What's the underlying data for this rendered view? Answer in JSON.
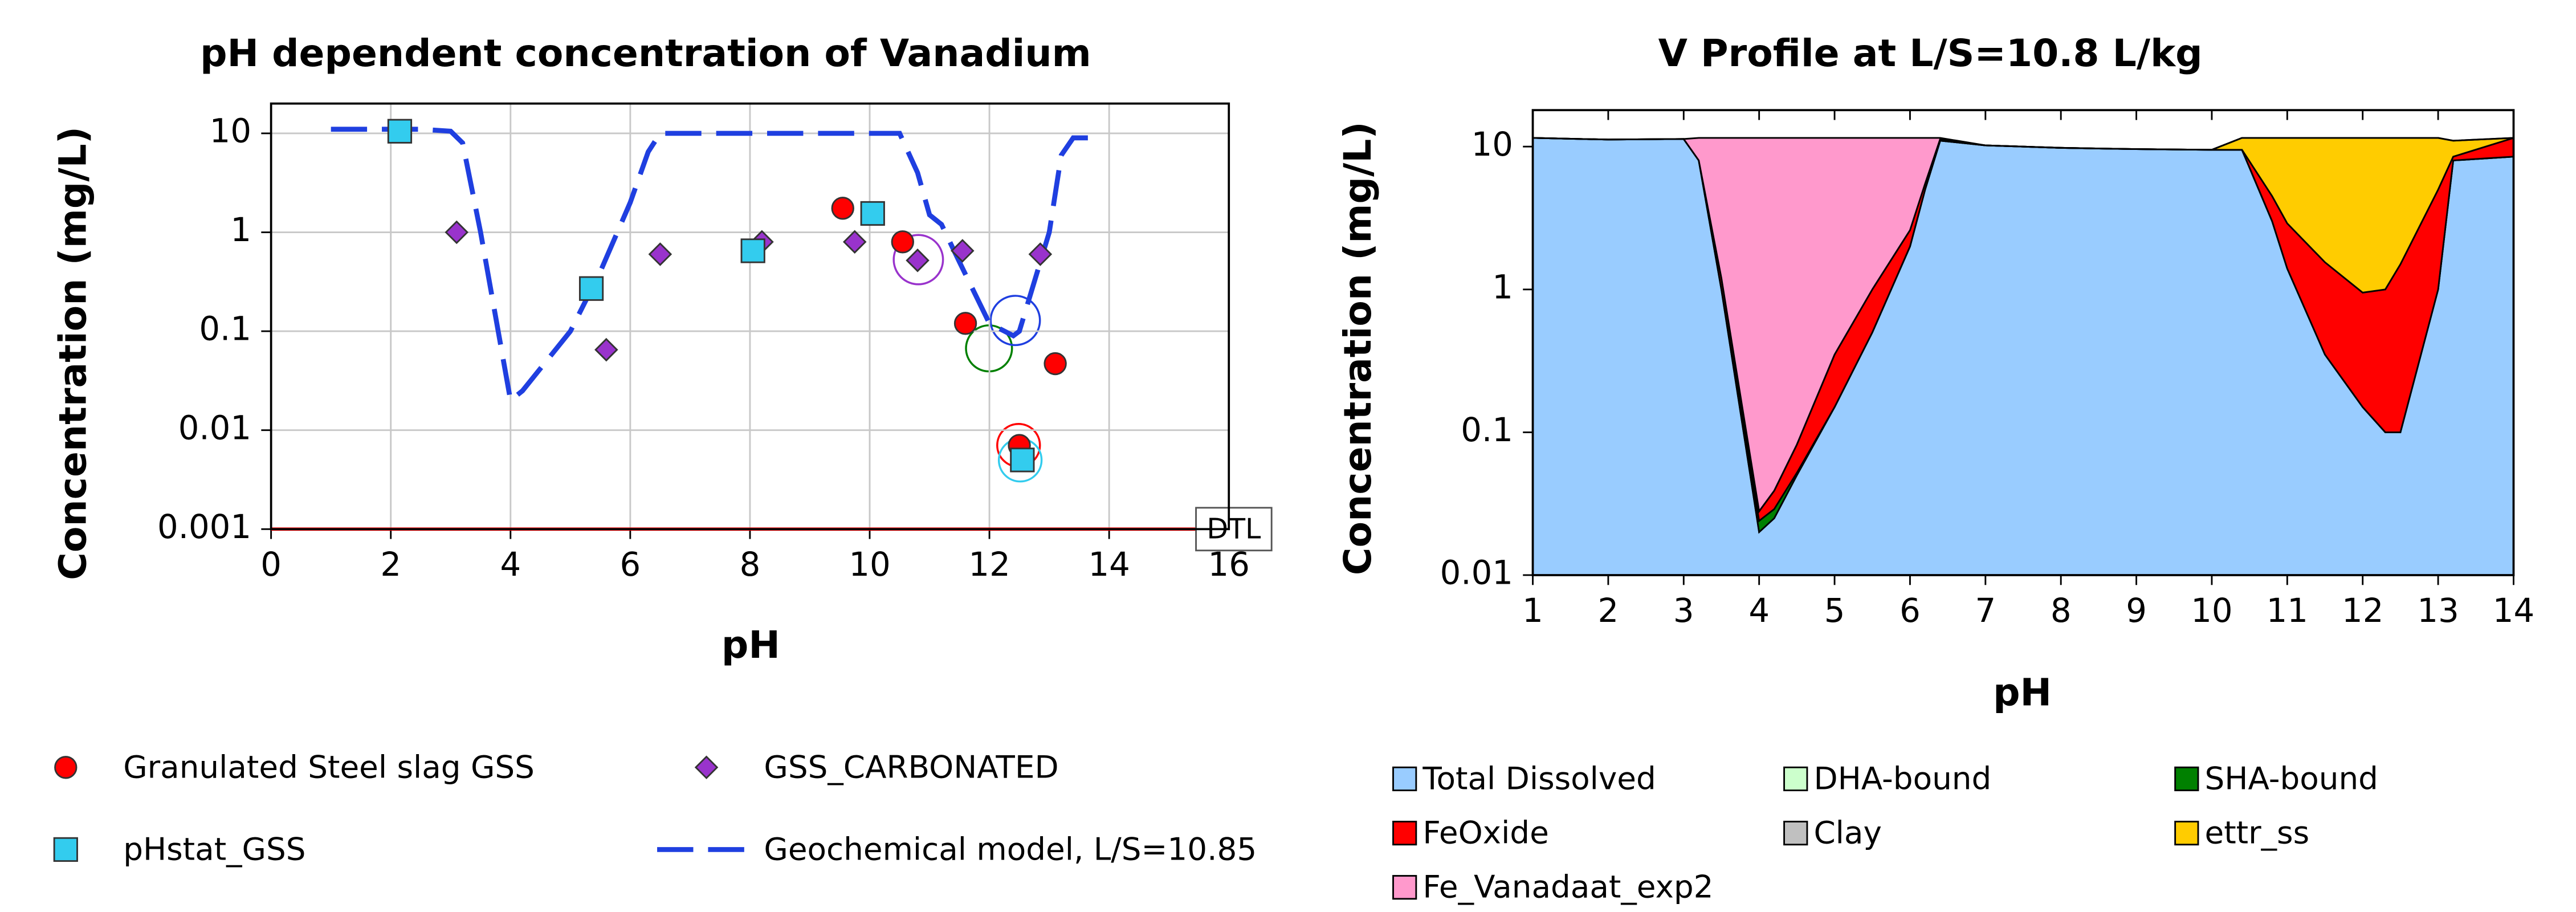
{
  "chart_data": [
    {
      "type": "scatter",
      "title": "pH dependent concentration of Vanadium",
      "x_label": "pH",
      "y_label": "Concentration (mg/L)",
      "xlim": [
        0,
        16
      ],
      "xticks": [
        0,
        2,
        4,
        6,
        8,
        10,
        12,
        14,
        16
      ],
      "ylim": [
        0.001,
        20
      ],
      "yticks": [
        10,
        1,
        0.1,
        0.01,
        0.001
      ],
      "log_y": true,
      "grid": true,
      "dtl": {
        "value": 0.001,
        "label": "DTL",
        "color": "#ff0000"
      },
      "series": [
        {
          "name": "Granulated Steel slag GSS",
          "kind": "marker",
          "marker": "circle",
          "color": "#ff0000",
          "x": [
            9.55,
            10.55,
            11.6,
            12.5,
            13.1
          ],
          "values": [
            1.75,
            0.8,
            0.12,
            0.007,
            0.047
          ]
        },
        {
          "name": "GSS_CARBONATED",
          "kind": "marker",
          "marker": "diamond",
          "color": "#9933cc",
          "x": [
            3.1,
            5.6,
            6.5,
            8.2,
            9.75,
            10.8,
            11.55,
            12.85
          ],
          "values": [
            1.0,
            0.065,
            0.6,
            0.8,
            0.8,
            0.52,
            0.65,
            0.6
          ]
        },
        {
          "name": "pHstat_GSS",
          "kind": "marker",
          "marker": "square",
          "color": "#33ccee",
          "x": [
            2.15,
            5.35,
            8.05,
            10.05,
            12.55
          ],
          "values": [
            10.5,
            0.27,
            0.65,
            1.55,
            0.005
          ]
        },
        {
          "name": "Geochemical model, L/S=10.85",
          "kind": "line",
          "style": "dashed",
          "color": "#1f3fe0",
          "x": [
            1,
            2.5,
            3,
            3.2,
            3.5,
            4,
            4.2,
            5,
            5.5,
            6,
            6.3,
            6.5,
            7,
            10.5,
            10.8,
            11,
            11.2,
            11.5,
            12,
            12.4,
            12.5,
            13,
            13.2,
            13.4,
            13.8
          ],
          "values": [
            11,
            11,
            10.5,
            8,
            1,
            0.02,
            0.025,
            0.1,
            0.4,
            2,
            6.5,
            10,
            10,
            10,
            4,
            1.5,
            1.2,
            0.5,
            0.12,
            0.09,
            0.1,
            1,
            6,
            9,
            9
          ]
        }
      ]
    },
    {
      "type": "area",
      "title": "V Profile at L/S=10.8 L/kg",
      "x_label": "pH",
      "y_label": "Concentration (mg/L)",
      "xlim": [
        1,
        14
      ],
      "xticks": [
        1,
        2,
        3,
        4,
        5,
        6,
        7,
        8,
        9,
        10,
        11,
        12,
        13,
        14
      ],
      "ylim": [
        0.01,
        18
      ],
      "yticks": [
        10,
        1,
        0.1,
        0.01
      ],
      "log_y": true,
      "grid": false,
      "x": [
        1,
        2,
        3,
        3.2,
        3.5,
        4,
        4.2,
        4.5,
        5,
        5.5,
        6,
        6.2,
        6.4,
        7,
        8,
        9,
        10,
        10.4,
        10.8,
        11,
        11.5,
        12,
        12.3,
        12.5,
        13,
        13.2,
        14
      ],
      "series": [
        {
          "name": "Total Dissolved",
          "color": "#99ccff",
          "values": [
            11.5,
            11.2,
            11.3,
            8,
            1,
            0.02,
            0.025,
            0.05,
            0.15,
            0.5,
            2,
            5,
            11,
            10.2,
            9.8,
            9.6,
            9.5,
            9.5,
            3,
            1.4,
            0.35,
            0.15,
            0.1,
            0.1,
            1,
            8,
            8.5
          ]
        },
        {
          "name": "DHA-bound",
          "color": "#ccffcc",
          "values": [
            0,
            0,
            0,
            0,
            0,
            0,
            0,
            0,
            0,
            0,
            0,
            0,
            0,
            0,
            0,
            0,
            0,
            0,
            0,
            0,
            0,
            0,
            0,
            0,
            0,
            0,
            0
          ]
        },
        {
          "name": "SHA-bound",
          "color": "#008000",
          "values": [
            0,
            0,
            0,
            0,
            0,
            0.004,
            0.004,
            0.002,
            0,
            0,
            0,
            0,
            0,
            0,
            0,
            0,
            0,
            0,
            0,
            0,
            0,
            0,
            0,
            0,
            0,
            0,
            0
          ]
        },
        {
          "name": "FeOxide",
          "color": "#ff0000",
          "values": [
            0,
            0,
            0,
            0,
            0.2,
            0.004,
            0.01,
            0.03,
            0.2,
            0.5,
            0.6,
            0.5,
            0.3,
            0,
            0,
            0,
            0,
            0,
            1.5,
            1.5,
            1.2,
            0.8,
            0.9,
            1.4,
            4,
            0.5,
            3
          ]
        },
        {
          "name": "Clay",
          "color": "#c0c0c0",
          "values": [
            0,
            0,
            0,
            0,
            0,
            0,
            0,
            0,
            0,
            0,
            0,
            0,
            0,
            0,
            0,
            0,
            0,
            0,
            0,
            0,
            0,
            0,
            0,
            0,
            0,
            0,
            0
          ]
        },
        {
          "name": "ettr_ss",
          "color": "#ffcc00",
          "values": [
            0,
            0,
            0,
            0,
            0,
            0,
            0,
            0,
            0,
            0,
            0,
            0,
            0,
            0,
            0,
            0,
            0,
            2,
            7,
            8.6,
            9.95,
            10.55,
            10.5,
            10,
            6.5,
            2.5,
            0
          ]
        },
        {
          "name": "Fe_Vanadaat_exp2",
          "color": "#ff99cc",
          "values": [
            0,
            0,
            0,
            3.5,
            10.3,
            11.47,
            11.46,
            11.42,
            11.15,
            10.5,
            8.9,
            6,
            0.2,
            0,
            0,
            0,
            0,
            0,
            0,
            0,
            0,
            0,
            0,
            0,
            0,
            0,
            0
          ]
        }
      ]
    }
  ]
}
